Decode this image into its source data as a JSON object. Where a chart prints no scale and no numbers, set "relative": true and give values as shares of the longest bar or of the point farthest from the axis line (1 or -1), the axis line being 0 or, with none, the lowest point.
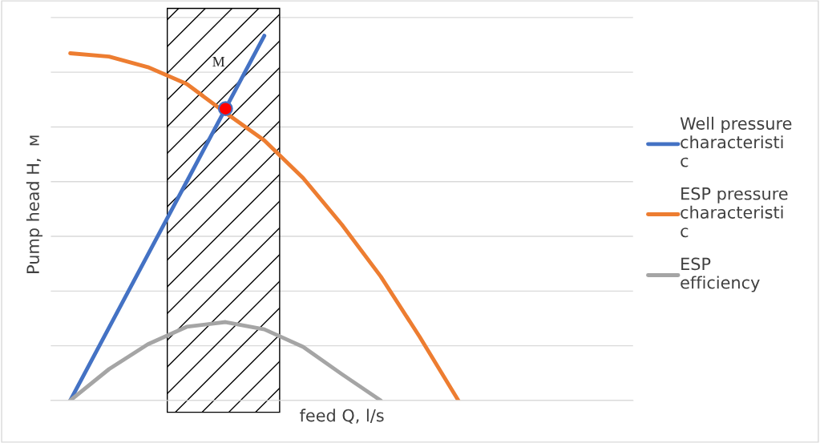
{
  "chart_data": {
    "type": "line",
    "relative": true,
    "xlabel": "feed Q, l/s",
    "ylabel": "Pump head H,  м",
    "categories": [
      null,
      null,
      null,
      null,
      null,
      null,
      null,
      null,
      null,
      null,
      null
    ],
    "series": [
      {
        "name": "Well pressure characteristic",
        "color": "#4472c4",
        "values": [
          0,
          0.2,
          0.4,
          0.6,
          0.8,
          1.0,
          null,
          null,
          null,
          null,
          null
        ]
      },
      {
        "name": "ESP pressure characteristic",
        "color": "#ed7d31",
        "values": [
          0.952,
          0.943,
          0.914,
          0.868,
          0.789,
          0.713,
          0.61,
          0.482,
          0.34,
          0.175,
          0
        ]
      },
      {
        "name": "ESP efficiency",
        "color": "#a5a5a5",
        "values": [
          0,
          0.086,
          0.154,
          0.202,
          0.215,
          0.195,
          0.147,
          0.072,
          0,
          null,
          null
        ]
      },
      {
        "type": "line",
        "marker": "circle",
        "color": "#ff0000",
        "values": [
          null,
          null,
          null,
          null,
          0.8,
          null,
          null,
          null,
          null,
          null,
          null
        ]
      }
    ],
    "annotations": [
      "M"
    ],
    "grid": "y",
    "legend": "right",
    "marker": "none"
  }
}
